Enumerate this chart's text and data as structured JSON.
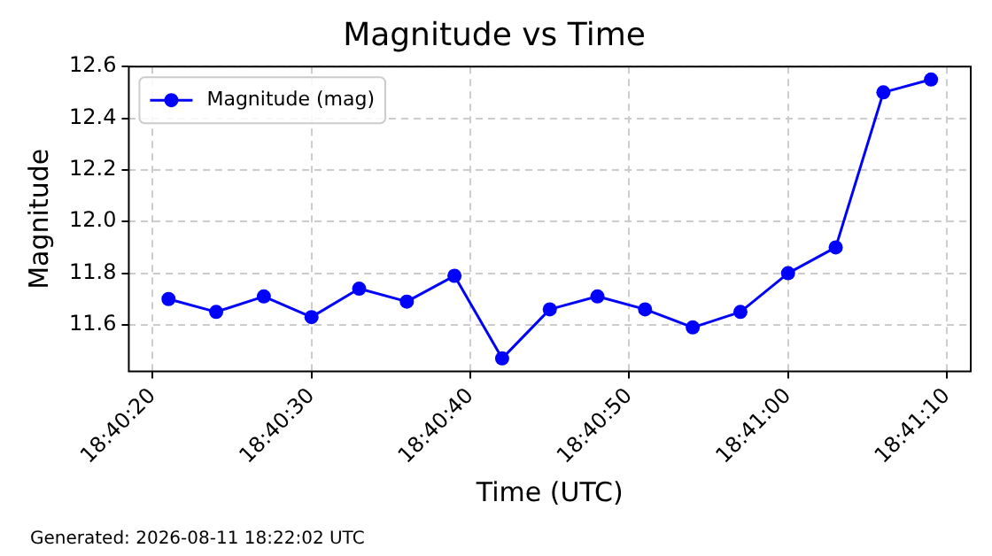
{
  "chart_data": {
    "type": "line",
    "title": "Magnitude vs Time",
    "xlabel": "Time (UTC)",
    "ylabel": "Magnitude",
    "x": [
      "2026-08-11T18:40:21",
      "2026-08-11T18:40:24",
      "2026-08-11T18:40:27",
      "2026-08-11T18:40:30",
      "2026-08-11T18:40:33",
      "2026-08-11T18:40:36",
      "2026-08-11T18:40:39",
      "2026-08-11T18:40:42",
      "2026-08-11T18:40:45",
      "2026-08-11T18:40:48",
      "2026-08-11T18:40:51",
      "2026-08-11T18:40:54",
      "2026-08-11T18:40:57",
      "2026-08-11T18:41:00",
      "2026-08-11T18:41:03",
      "2026-08-11T18:41:06",
      "2026-08-11T18:41:09"
    ],
    "series": [
      {
        "name": "Magnitude (mag)",
        "color": "#0000ff",
        "values": [
          11.7,
          11.65,
          11.71,
          11.63,
          11.74,
          11.69,
          11.79,
          11.47,
          11.66,
          11.71,
          11.66,
          11.59,
          11.65,
          11.8,
          11.9,
          12.5,
          12.55
        ]
      }
    ],
    "xlim": [
      "2026-08-11T18:40:18.5",
      "2026-08-11T18:41:11.5"
    ],
    "xticks": [
      {
        "value": "2026-08-11T18:40:20",
        "label": "18:40:20"
      },
      {
        "value": "2026-08-11T18:40:30",
        "label": "18:40:30"
      },
      {
        "value": "2026-08-11T18:40:40",
        "label": "18:40:40"
      },
      {
        "value": "2026-08-11T18:40:50",
        "label": "18:40:50"
      },
      {
        "value": "2026-08-11T18:41:00",
        "label": "18:41:00"
      },
      {
        "value": "2026-08-11T18:41:10",
        "label": "18:41:10"
      }
    ],
    "ylim": [
      11.42,
      12.6
    ],
    "yticks": [
      {
        "value": 11.6,
        "label": "11.6"
      },
      {
        "value": 11.8,
        "label": "11.8"
      },
      {
        "value": 12.0,
        "label": "12.0"
      },
      {
        "value": 12.2,
        "label": "12.2"
      },
      {
        "value": 12.4,
        "label": "12.4"
      },
      {
        "value": 12.6,
        "label": "12.6"
      }
    ],
    "grid": true,
    "legend": "top left",
    "marker": "circle",
    "line_style": "solid",
    "annotations": [
      "Generated: 2026-08-11 18:22:02 UTC"
    ]
  }
}
